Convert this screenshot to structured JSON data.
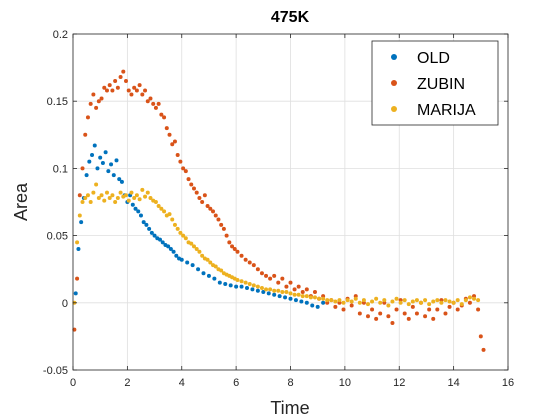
{
  "chart_data": {
    "type": "scatter",
    "title": "475K",
    "xlabel": "Time",
    "ylabel": "Area",
    "xlim": [
      0,
      16
    ],
    "ylim": [
      -0.05,
      0.2
    ],
    "xticks": [
      "0",
      "2",
      "4",
      "6",
      "8",
      "10",
      "12",
      "14",
      "16"
    ],
    "yticks": [
      "-0.05",
      "0",
      "0.05",
      "0.1",
      "0.15",
      "0.2"
    ],
    "grid": true,
    "legend_position": "top-right",
    "series": [
      {
        "name": "OLD",
        "color": "#0072BD",
        "points": [
          [
            0.1,
            0.007
          ],
          [
            0.2,
            0.04
          ],
          [
            0.3,
            0.06
          ],
          [
            0.4,
            0.078
          ],
          [
            0.5,
            0.095
          ],
          [
            0.6,
            0.105
          ],
          [
            0.7,
            0.11
          ],
          [
            0.8,
            0.117
          ],
          [
            0.9,
            0.1
          ],
          [
            1.0,
            0.108
          ],
          [
            1.1,
            0.104
          ],
          [
            1.2,
            0.112
          ],
          [
            1.3,
            0.098
          ],
          [
            1.4,
            0.103
          ],
          [
            1.5,
            0.095
          ],
          [
            1.6,
            0.106
          ],
          [
            1.7,
            0.092
          ],
          [
            1.8,
            0.09
          ],
          [
            1.9,
            0.08
          ],
          [
            2.0,
            0.075
          ],
          [
            2.1,
            0.08
          ],
          [
            2.2,
            0.073
          ],
          [
            2.3,
            0.07
          ],
          [
            2.4,
            0.068
          ],
          [
            2.5,
            0.065
          ],
          [
            2.6,
            0.06
          ],
          [
            2.7,
            0.058
          ],
          [
            2.8,
            0.055
          ],
          [
            2.9,
            0.052
          ],
          [
            3.0,
            0.05
          ],
          [
            3.1,
            0.048
          ],
          [
            3.2,
            0.047
          ],
          [
            3.3,
            0.045
          ],
          [
            3.4,
            0.043
          ],
          [
            3.5,
            0.042
          ],
          [
            3.6,
            0.04
          ],
          [
            3.7,
            0.038
          ],
          [
            3.8,
            0.035
          ],
          [
            3.9,
            0.033
          ],
          [
            4.0,
            0.032
          ],
          [
            4.2,
            0.03
          ],
          [
            4.4,
            0.028
          ],
          [
            4.6,
            0.025
          ],
          [
            4.8,
            0.022
          ],
          [
            5.0,
            0.02
          ],
          [
            5.2,
            0.018
          ],
          [
            5.4,
            0.015
          ],
          [
            5.6,
            0.014
          ],
          [
            5.8,
            0.013
          ],
          [
            6.0,
            0.012
          ],
          [
            6.2,
            0.012
          ],
          [
            6.4,
            0.011
          ],
          [
            6.6,
            0.01
          ],
          [
            6.8,
            0.009
          ],
          [
            7.0,
            0.008
          ],
          [
            7.2,
            0.007
          ],
          [
            7.4,
            0.006
          ],
          [
            7.6,
            0.005
          ],
          [
            7.8,
            0.004
          ],
          [
            8.0,
            0.003
          ],
          [
            8.2,
            0.002
          ],
          [
            8.4,
            0.001
          ],
          [
            8.6,
            0.0
          ],
          [
            8.8,
            -0.002
          ],
          [
            9.0,
            -0.003
          ],
          [
            9.2,
            0.0
          ]
        ]
      },
      {
        "name": "ZUBIN",
        "color": "#D95319",
        "points": [
          [
            0.05,
            -0.02
          ],
          [
            0.15,
            0.018
          ],
          [
            0.25,
            0.08
          ],
          [
            0.35,
            0.1
          ],
          [
            0.45,
            0.125
          ],
          [
            0.55,
            0.138
          ],
          [
            0.65,
            0.148
          ],
          [
            0.75,
            0.155
          ],
          [
            0.85,
            0.145
          ],
          [
            0.95,
            0.15
          ],
          [
            1.05,
            0.152
          ],
          [
            1.15,
            0.16
          ],
          [
            1.25,
            0.158
          ],
          [
            1.35,
            0.162
          ],
          [
            1.45,
            0.158
          ],
          [
            1.55,
            0.165
          ],
          [
            1.65,
            0.16
          ],
          [
            1.75,
            0.168
          ],
          [
            1.85,
            0.172
          ],
          [
            1.95,
            0.165
          ],
          [
            2.05,
            0.158
          ],
          [
            2.15,
            0.155
          ],
          [
            2.25,
            0.16
          ],
          [
            2.35,
            0.158
          ],
          [
            2.45,
            0.162
          ],
          [
            2.55,
            0.155
          ],
          [
            2.65,
            0.158
          ],
          [
            2.75,
            0.15
          ],
          [
            2.85,
            0.152
          ],
          [
            2.95,
            0.148
          ],
          [
            3.05,
            0.145
          ],
          [
            3.15,
            0.148
          ],
          [
            3.25,
            0.14
          ],
          [
            3.35,
            0.138
          ],
          [
            3.45,
            0.13
          ],
          [
            3.55,
            0.125
          ],
          [
            3.65,
            0.118
          ],
          [
            3.75,
            0.12
          ],
          [
            3.85,
            0.11
          ],
          [
            3.95,
            0.105
          ],
          [
            4.05,
            0.1
          ],
          [
            4.15,
            0.098
          ],
          [
            4.25,
            0.092
          ],
          [
            4.35,
            0.088
          ],
          [
            4.45,
            0.085
          ],
          [
            4.55,
            0.082
          ],
          [
            4.65,
            0.078
          ],
          [
            4.75,
            0.075
          ],
          [
            4.85,
            0.08
          ],
          [
            4.95,
            0.072
          ],
          [
            5.05,
            0.07
          ],
          [
            5.15,
            0.068
          ],
          [
            5.25,
            0.065
          ],
          [
            5.35,
            0.062
          ],
          [
            5.45,
            0.058
          ],
          [
            5.55,
            0.055
          ],
          [
            5.65,
            0.05
          ],
          [
            5.75,
            0.045
          ],
          [
            5.85,
            0.042
          ],
          [
            5.95,
            0.04
          ],
          [
            6.05,
            0.038
          ],
          [
            6.2,
            0.035
          ],
          [
            6.35,
            0.032
          ],
          [
            6.5,
            0.03
          ],
          [
            6.65,
            0.028
          ],
          [
            6.8,
            0.025
          ],
          [
            6.95,
            0.022
          ],
          [
            7.1,
            0.02
          ],
          [
            7.25,
            0.018
          ],
          [
            7.4,
            0.02
          ],
          [
            7.55,
            0.015
          ],
          [
            7.7,
            0.018
          ],
          [
            7.85,
            0.012
          ],
          [
            8.0,
            0.015
          ],
          [
            8.15,
            0.01
          ],
          [
            8.3,
            0.012
          ],
          [
            8.45,
            0.008
          ],
          [
            8.6,
            0.01
          ],
          [
            8.75,
            0.005
          ],
          [
            8.9,
            0.008
          ],
          [
            9.05,
            0.003
          ],
          [
            9.2,
            0.005
          ],
          [
            9.35,
            0.0
          ],
          [
            9.5,
            0.002
          ],
          [
            9.65,
            -0.003
          ],
          [
            9.8,
            0.0
          ],
          [
            9.95,
            -0.005
          ],
          [
            10.1,
            0.003
          ],
          [
            10.25,
            -0.002
          ],
          [
            10.4,
            0.005
          ],
          [
            10.55,
            -0.008
          ],
          [
            10.7,
            0.0
          ],
          [
            10.85,
            -0.01
          ],
          [
            11.0,
            -0.005
          ],
          [
            11.15,
            -0.012
          ],
          [
            11.3,
            -0.008
          ],
          [
            11.45,
            0.0
          ],
          [
            11.6,
            -0.01
          ],
          [
            11.75,
            -0.015
          ],
          [
            11.9,
            -0.005
          ],
          [
            12.05,
            0.002
          ],
          [
            12.2,
            -0.008
          ],
          [
            12.35,
            -0.012
          ],
          [
            12.5,
            -0.003
          ],
          [
            12.65,
            -0.008
          ],
          [
            12.8,
            0.0
          ],
          [
            12.95,
            -0.01
          ],
          [
            13.1,
            -0.005
          ],
          [
            13.25,
            -0.012
          ],
          [
            13.4,
            -0.005
          ],
          [
            13.55,
            0.002
          ],
          [
            13.7,
            -0.008
          ],
          [
            13.85,
            -0.003
          ],
          [
            14.0,
            0.0
          ],
          [
            14.15,
            -0.005
          ],
          [
            14.3,
            -0.002
          ],
          [
            14.45,
            0.003
          ],
          [
            14.6,
            0.0
          ],
          [
            14.75,
            0.005
          ],
          [
            14.9,
            -0.005
          ],
          [
            15.0,
            -0.025
          ],
          [
            15.1,
            -0.035
          ]
        ]
      },
      {
        "name": "MARIJA",
        "color": "#EDB120",
        "points": [
          [
            0.05,
            0.0
          ],
          [
            0.15,
            0.045
          ],
          [
            0.25,
            0.065
          ],
          [
            0.35,
            0.075
          ],
          [
            0.45,
            0.078
          ],
          [
            0.55,
            0.08
          ],
          [
            0.65,
            0.075
          ],
          [
            0.75,
            0.082
          ],
          [
            0.85,
            0.088
          ],
          [
            0.95,
            0.078
          ],
          [
            1.05,
            0.08
          ],
          [
            1.15,
            0.076
          ],
          [
            1.25,
            0.082
          ],
          [
            1.35,
            0.078
          ],
          [
            1.45,
            0.08
          ],
          [
            1.55,
            0.075
          ],
          [
            1.65,
            0.078
          ],
          [
            1.75,
            0.082
          ],
          [
            1.85,
            0.079
          ],
          [
            1.95,
            0.08
          ],
          [
            2.05,
            0.076
          ],
          [
            2.15,
            0.082
          ],
          [
            2.25,
            0.078
          ],
          [
            2.35,
            0.08
          ],
          [
            2.45,
            0.077
          ],
          [
            2.55,
            0.084
          ],
          [
            2.65,
            0.079
          ],
          [
            2.75,
            0.082
          ],
          [
            2.85,
            0.078
          ],
          [
            2.95,
            0.076
          ],
          [
            3.05,
            0.075
          ],
          [
            3.15,
            0.072
          ],
          [
            3.25,
            0.07
          ],
          [
            3.35,
            0.068
          ],
          [
            3.45,
            0.065
          ],
          [
            3.55,
            0.066
          ],
          [
            3.65,
            0.062
          ],
          [
            3.75,
            0.058
          ],
          [
            3.85,
            0.055
          ],
          [
            3.95,
            0.052
          ],
          [
            4.05,
            0.05
          ],
          [
            4.15,
            0.048
          ],
          [
            4.25,
            0.045
          ],
          [
            4.35,
            0.044
          ],
          [
            4.45,
            0.042
          ],
          [
            4.55,
            0.04
          ],
          [
            4.65,
            0.038
          ],
          [
            4.75,
            0.035
          ],
          [
            4.85,
            0.033
          ],
          [
            4.95,
            0.032
          ],
          [
            5.05,
            0.03
          ],
          [
            5.15,
            0.028
          ],
          [
            5.25,
            0.027
          ],
          [
            5.35,
            0.025
          ],
          [
            5.45,
            0.024
          ],
          [
            5.55,
            0.022
          ],
          [
            5.65,
            0.021
          ],
          [
            5.75,
            0.02
          ],
          [
            5.85,
            0.019
          ],
          [
            5.95,
            0.018
          ],
          [
            6.05,
            0.017
          ],
          [
            6.2,
            0.016
          ],
          [
            6.35,
            0.015
          ],
          [
            6.5,
            0.014
          ],
          [
            6.65,
            0.013
          ],
          [
            6.8,
            0.012
          ],
          [
            6.95,
            0.011
          ],
          [
            7.1,
            0.01
          ],
          [
            7.25,
            0.01
          ],
          [
            7.4,
            0.009
          ],
          [
            7.55,
            0.009
          ],
          [
            7.7,
            0.008
          ],
          [
            7.85,
            0.008
          ],
          [
            8.0,
            0.007
          ],
          [
            8.15,
            0.006
          ],
          [
            8.3,
            0.006
          ],
          [
            8.45,
            0.005
          ],
          [
            8.6,
            0.005
          ],
          [
            8.75,
            0.004
          ],
          [
            8.9,
            0.004
          ],
          [
            9.05,
            0.003
          ],
          [
            9.2,
            0.003
          ],
          [
            9.35,
            0.002
          ],
          [
            9.5,
            0.002
          ],
          [
            9.65,
            0.001
          ],
          [
            9.8,
            0.002
          ],
          [
            9.95,
            0.0
          ],
          [
            10.1,
            0.002
          ],
          [
            10.25,
            0.001
          ],
          [
            10.4,
            0.003
          ],
          [
            10.55,
            0.0
          ],
          [
            10.7,
            0.002
          ],
          [
            10.85,
            -0.001
          ],
          [
            11.0,
            0.001
          ],
          [
            11.15,
            0.003
          ],
          [
            11.3,
            0.0
          ],
          [
            11.45,
            0.002
          ],
          [
            11.6,
            -0.002
          ],
          [
            11.75,
            0.001
          ],
          [
            11.9,
            0.003
          ],
          [
            12.05,
            0.0
          ],
          [
            12.2,
            0.002
          ],
          [
            12.35,
            -0.001
          ],
          [
            12.5,
            0.001
          ],
          [
            12.65,
            0.002
          ],
          [
            12.8,
            0.0
          ],
          [
            12.95,
            0.002
          ],
          [
            13.1,
            -0.001
          ],
          [
            13.25,
            0.001
          ],
          [
            13.4,
            0.002
          ],
          [
            13.55,
            0.0
          ],
          [
            13.7,
            0.002
          ],
          [
            13.85,
            0.001
          ],
          [
            14.0,
            0.0
          ],
          [
            14.15,
            0.002
          ],
          [
            14.3,
            -0.001
          ],
          [
            14.45,
            0.002
          ],
          [
            14.6,
            0.004
          ],
          [
            14.75,
            0.003
          ],
          [
            14.9,
            0.002
          ]
        ]
      }
    ]
  }
}
